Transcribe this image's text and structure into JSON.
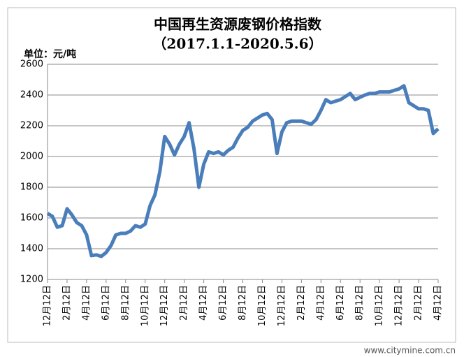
{
  "chart_data": {
    "type": "line",
    "title": "中国再生资源废钢价格指数",
    "subtitle": "（2017.1.1-2020.5.6）",
    "y_label": "单位：元/吨",
    "watermark": "www.citymine.com.cn",
    "categories": [
      "12月12日",
      null,
      null,
      null,
      "2月12日",
      null,
      null,
      null,
      "4月12日",
      null,
      null,
      null,
      "6月12日",
      null,
      null,
      null,
      "8月12日",
      null,
      null,
      null,
      "10月12日",
      null,
      null,
      null,
      "12月12日",
      null,
      null,
      null,
      "2月12日",
      null,
      null,
      null,
      "4月12日",
      null,
      null,
      null,
      "6月12日",
      null,
      null,
      null,
      "8月12日",
      null,
      null,
      null,
      "10月12日",
      null,
      null,
      null,
      "12月12日",
      null,
      null,
      null,
      "2月12日",
      null,
      null,
      null,
      "4月12日",
      null,
      null,
      null,
      "6月12日",
      null,
      null,
      null,
      "8月12日",
      null,
      null,
      null,
      "10月12日",
      null,
      null,
      null,
      "12月12日",
      null,
      null,
      null,
      "2月12日",
      null,
      null,
      null,
      "4月12日"
    ],
    "series": [
      {
        "color": "#4a7ebb",
        "values": [
          1630,
          1610,
          1540,
          1550,
          1660,
          1620,
          1570,
          1550,
          1490,
          1355,
          1360,
          1350,
          1375,
          1420,
          1490,
          1500,
          1500,
          1515,
          1550,
          1540,
          1560,
          1680,
          1750,
          1900,
          2130,
          2080,
          2010,
          2080,
          2130,
          2220,
          2050,
          1800,
          1950,
          2030,
          2020,
          2030,
          2010,
          2040,
          2060,
          2120,
          2170,
          2190,
          2230,
          2250,
          2270,
          2280,
          2240,
          2020,
          2160,
          2220,
          2230,
          2230,
          2230,
          2220,
          2210,
          2240,
          2300,
          2370,
          2350,
          2360,
          2370,
          2390,
          2410,
          2370,
          2385,
          2400,
          2410,
          2410,
          2420,
          2420,
          2420,
          2430,
          2440,
          2460,
          2350,
          2330,
          2310,
          2310,
          2300,
          2150,
          2180
        ]
      }
    ],
    "ylim": [
      1200,
      2600
    ],
    "yticks": [
      1200,
      1400,
      1600,
      1800,
      2000,
      2200,
      2400,
      2600
    ],
    "grid": true
  }
}
